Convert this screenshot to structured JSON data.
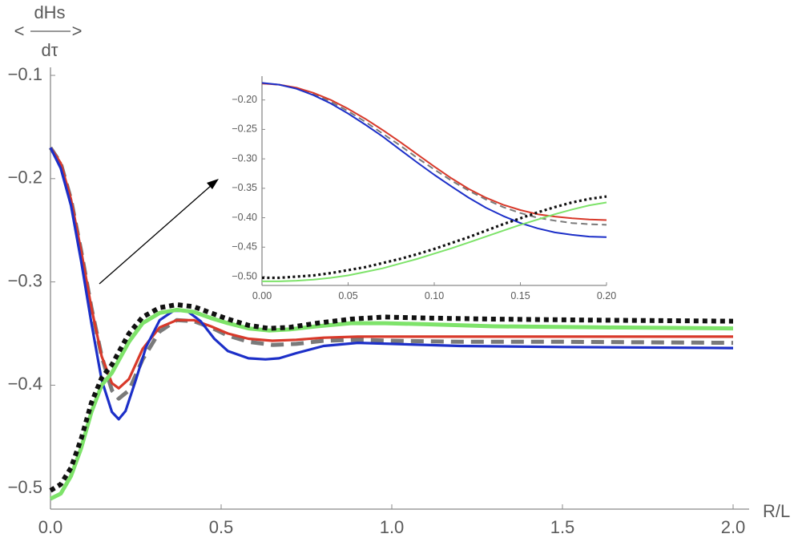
{
  "chart_data": [
    {
      "type": "line",
      "panel": "main",
      "xlabel": "R/L",
      "ylabel": {
        "arrow_left": "<",
        "numerator": "dHs",
        "arrow_right": ">",
        "denominator": "dτ"
      },
      "xlim": [
        0,
        2.0
      ],
      "ylim": [
        -0.52,
        -0.1
      ],
      "xticks": [
        "0.0",
        "0.5",
        "1.0",
        "1.5",
        "2.0"
      ],
      "xtick_values": [
        0,
        0.5,
        1.0,
        1.5,
        2.0
      ],
      "yticks": [
        "-0.1",
        "-0.2",
        "-0.3",
        "-0.4",
        "-0.5"
      ],
      "ytick_values": [
        -0.1,
        -0.2,
        -0.3,
        -0.4,
        -0.5
      ],
      "grid": false,
      "series": [
        {
          "color": "#7a7a7a",
          "style": "dashed-thick",
          "x": [
            0,
            0.03,
            0.06,
            0.09,
            0.12,
            0.15,
            0.18,
            0.2,
            0.23,
            0.27,
            0.32,
            0.37,
            0.42,
            0.47,
            0.52,
            0.58,
            0.65,
            0.72,
            0.8,
            0.9,
            1.0,
            1.2,
            1.5,
            2.0
          ],
          "y": [
            -0.17,
            -0.185,
            -0.22,
            -0.27,
            -0.325,
            -0.372,
            -0.405,
            -0.413,
            -0.405,
            -0.375,
            -0.348,
            -0.337,
            -0.338,
            -0.344,
            -0.352,
            -0.358,
            -0.361,
            -0.36,
            -0.357,
            -0.356,
            -0.357,
            -0.358,
            -0.358,
            -0.359
          ]
        },
        {
          "color": "#d8392a",
          "style": "solid",
          "x": [
            0,
            0.03,
            0.06,
            0.09,
            0.12,
            0.15,
            0.18,
            0.2,
            0.23,
            0.27,
            0.32,
            0.37,
            0.42,
            0.47,
            0.52,
            0.58,
            0.65,
            0.72,
            0.8,
            0.9,
            1.0,
            1.2,
            1.5,
            2.0
          ],
          "y": [
            -0.17,
            -0.185,
            -0.22,
            -0.27,
            -0.325,
            -0.372,
            -0.398,
            -0.403,
            -0.394,
            -0.365,
            -0.344,
            -0.337,
            -0.337,
            -0.343,
            -0.35,
            -0.355,
            -0.357,
            -0.356,
            -0.354,
            -0.353,
            -0.353,
            -0.353,
            -0.353,
            -0.353
          ]
        },
        {
          "color": "#1c2fc8",
          "style": "solid",
          "x": [
            0,
            0.03,
            0.06,
            0.09,
            0.12,
            0.15,
            0.18,
            0.2,
            0.22,
            0.25,
            0.28,
            0.32,
            0.36,
            0.4,
            0.44,
            0.48,
            0.52,
            0.58,
            0.63,
            0.67,
            0.72,
            0.8,
            0.9,
            1.0,
            1.2,
            1.5,
            2.0
          ],
          "y": [
            -0.17,
            -0.19,
            -0.226,
            -0.28,
            -0.34,
            -0.395,
            -0.426,
            -0.433,
            -0.425,
            -0.395,
            -0.363,
            -0.337,
            -0.328,
            -0.328,
            -0.338,
            -0.355,
            -0.367,
            -0.374,
            -0.375,
            -0.374,
            -0.369,
            -0.362,
            -0.359,
            -0.36,
            -0.362,
            -0.363,
            -0.364
          ]
        },
        {
          "color": "#7ee36a",
          "style": "solid-thick",
          "x": [
            0,
            0.03,
            0.06,
            0.09,
            0.12,
            0.15,
            0.18,
            0.2,
            0.23,
            0.27,
            0.32,
            0.37,
            0.42,
            0.47,
            0.52,
            0.58,
            0.64,
            0.7,
            0.78,
            0.88,
            0.98,
            1.1,
            1.3,
            1.6,
            2.0
          ],
          "y": [
            -0.51,
            -0.505,
            -0.488,
            -0.461,
            -0.426,
            -0.4,
            -0.388,
            -0.376,
            -0.358,
            -0.34,
            -0.33,
            -0.327,
            -0.329,
            -0.335,
            -0.34,
            -0.345,
            -0.347,
            -0.346,
            -0.343,
            -0.34,
            -0.34,
            -0.341,
            -0.343,
            -0.344,
            -0.345
          ]
        },
        {
          "color": "#111111",
          "style": "dotted-thick",
          "x": [
            0,
            0.03,
            0.06,
            0.09,
            0.12,
            0.15,
            0.18,
            0.2,
            0.23,
            0.27,
            0.32,
            0.37,
            0.42,
            0.47,
            0.52,
            0.58,
            0.64,
            0.7,
            0.78,
            0.88,
            0.98,
            1.1,
            1.3,
            1.6,
            2.0
          ],
          "y": [
            -0.502,
            -0.496,
            -0.48,
            -0.452,
            -0.417,
            -0.393,
            -0.38,
            -0.368,
            -0.35,
            -0.334,
            -0.325,
            -0.322,
            -0.324,
            -0.33,
            -0.336,
            -0.342,
            -0.345,
            -0.344,
            -0.34,
            -0.336,
            -0.334,
            -0.335,
            -0.336,
            -0.337,
            -0.338
          ]
        }
      ]
    },
    {
      "type": "line",
      "panel": "inset",
      "xlim": [
        0,
        0.2
      ],
      "ylim": [
        -0.515,
        -0.165
      ],
      "xticks": [
        "0.00",
        "0.05",
        "0.10",
        "0.15",
        "0.20"
      ],
      "xtick_values": [
        0,
        0.05,
        0.1,
        0.15,
        0.2
      ],
      "yticks": [
        "-0.20",
        "-0.25",
        "-0.30",
        "-0.35",
        "-0.40",
        "-0.45",
        "-0.50"
      ],
      "ytick_values": [
        -0.2,
        -0.25,
        -0.3,
        -0.35,
        -0.4,
        -0.45,
        -0.5
      ],
      "grid": false,
      "series": [
        {
          "color": "#7a7a7a",
          "style": "dashed",
          "x": [
            0,
            0.01,
            0.02,
            0.03,
            0.04,
            0.05,
            0.06,
            0.07,
            0.08,
            0.09,
            0.1,
            0.11,
            0.12,
            0.13,
            0.14,
            0.15,
            0.16,
            0.17,
            0.18,
            0.19,
            0.2
          ],
          "y": [
            -0.172,
            -0.174,
            -0.18,
            -0.19,
            -0.203,
            -0.219,
            -0.237,
            -0.257,
            -0.277,
            -0.298,
            -0.318,
            -0.337,
            -0.354,
            -0.369,
            -0.382,
            -0.392,
            -0.4,
            -0.405,
            -0.409,
            -0.411,
            -0.412
          ]
        },
        {
          "color": "#d8392a",
          "style": "solid",
          "x": [
            0,
            0.01,
            0.02,
            0.03,
            0.04,
            0.05,
            0.06,
            0.07,
            0.08,
            0.09,
            0.1,
            0.11,
            0.12,
            0.13,
            0.14,
            0.15,
            0.16,
            0.17,
            0.18,
            0.19,
            0.2
          ],
          "y": [
            -0.172,
            -0.174,
            -0.179,
            -0.188,
            -0.2,
            -0.215,
            -0.232,
            -0.251,
            -0.271,
            -0.292,
            -0.313,
            -0.333,
            -0.351,
            -0.366,
            -0.378,
            -0.387,
            -0.394,
            -0.398,
            -0.401,
            -0.403,
            -0.404
          ]
        },
        {
          "color": "#1c2fc8",
          "style": "solid",
          "x": [
            0,
            0.01,
            0.02,
            0.03,
            0.04,
            0.05,
            0.06,
            0.07,
            0.08,
            0.09,
            0.1,
            0.11,
            0.12,
            0.13,
            0.14,
            0.15,
            0.16,
            0.17,
            0.18,
            0.19,
            0.2
          ],
          "y": [
            -0.171,
            -0.174,
            -0.181,
            -0.192,
            -0.206,
            -0.223,
            -0.242,
            -0.262,
            -0.284,
            -0.306,
            -0.327,
            -0.347,
            -0.366,
            -0.383,
            -0.397,
            -0.409,
            -0.418,
            -0.425,
            -0.429,
            -0.432,
            -0.433
          ]
        },
        {
          "color": "#7ee36a",
          "style": "solid",
          "x": [
            0,
            0.01,
            0.02,
            0.03,
            0.04,
            0.05,
            0.06,
            0.07,
            0.08,
            0.09,
            0.1,
            0.11,
            0.12,
            0.13,
            0.14,
            0.15,
            0.16,
            0.17,
            0.18,
            0.19,
            0.2
          ],
          "y": [
            -0.508,
            -0.508,
            -0.507,
            -0.505,
            -0.502,
            -0.498,
            -0.492,
            -0.486,
            -0.478,
            -0.47,
            -0.461,
            -0.452,
            -0.442,
            -0.432,
            -0.422,
            -0.412,
            -0.403,
            -0.394,
            -0.386,
            -0.379,
            -0.374
          ]
        },
        {
          "color": "#111111",
          "style": "dotted",
          "x": [
            0,
            0.01,
            0.02,
            0.03,
            0.04,
            0.05,
            0.06,
            0.07,
            0.08,
            0.09,
            0.1,
            0.11,
            0.12,
            0.13,
            0.14,
            0.15,
            0.16,
            0.17,
            0.18,
            0.19,
            0.2
          ],
          "y": [
            -0.502,
            -0.502,
            -0.5,
            -0.498,
            -0.494,
            -0.489,
            -0.484,
            -0.477,
            -0.47,
            -0.462,
            -0.453,
            -0.443,
            -0.433,
            -0.422,
            -0.411,
            -0.401,
            -0.391,
            -0.382,
            -0.374,
            -0.368,
            -0.364
          ]
        }
      ]
    }
  ]
}
